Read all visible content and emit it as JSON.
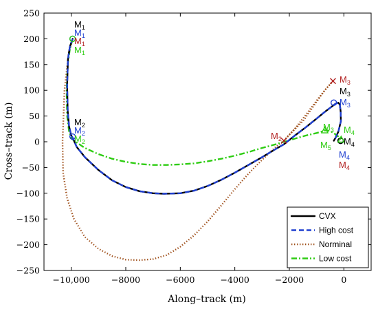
{
  "chart_data": {
    "type": "line",
    "xlabel": "Along–track (m)",
    "ylabel": "Cross–track (m)",
    "xlim": [
      -11000,
      1000
    ],
    "ylim": [
      -250,
      250
    ],
    "xticks": [
      -10000,
      -8000,
      -6000,
      -4000,
      -2000,
      0
    ],
    "xtick_labels": [
      "−10,000",
      "−8000",
      "−6000",
      "−4000",
      "−2000",
      "0"
    ],
    "yticks": [
      250,
      200,
      150,
      100,
      50,
      0,
      -50,
      -100,
      -150,
      -200,
      -250
    ],
    "ytick_labels": [
      "250",
      "200",
      "150",
      "100",
      "50",
      "0",
      "−50",
      "−100",
      "−150",
      "−200",
      "−250"
    ],
    "grid": false,
    "legend_position": "bottom-right",
    "series": [
      {
        "name": "CVX",
        "color": "#000000",
        "style": "solid",
        "x": [
          -9950,
          -10050,
          -10120,
          -10150,
          -10130,
          -10080,
          -10000,
          -9950,
          -9800,
          -9500,
          -9000,
          -8500,
          -8000,
          -7500,
          -7000,
          -6600,
          -6000,
          -5500,
          -5000,
          -4500,
          -4000,
          -3500,
          -3000,
          -2500,
          -2200,
          -1800,
          -1400,
          -1000,
          -700,
          -450,
          -300,
          -200,
          -150,
          -120,
          -110,
          -200,
          -300,
          -370
        ],
        "y": [
          200,
          185,
          160,
          110,
          60,
          30,
          12,
          8,
          -10,
          -30,
          -55,
          -75,
          -88,
          -96,
          -100,
          -101,
          -100,
          -95,
          -86,
          -74,
          -60,
          -45,
          -30,
          -14,
          -5,
          12,
          28,
          45,
          58,
          68,
          74,
          76,
          72,
          60,
          40,
          20,
          8,
          2
        ]
      },
      {
        "name": "High cost",
        "color": "#1f3fd0",
        "style": "dashed",
        "x": [
          -9950,
          -10050,
          -10120,
          -10150,
          -10130,
          -10080,
          -10000,
          -9950,
          -9800,
          -9500,
          -9000,
          -8500,
          -8000,
          -7500,
          -7000,
          -6600,
          -6000,
          -5500,
          -5000,
          -4500,
          -4000,
          -3500,
          -3000,
          -2500,
          -2200,
          -1800,
          -1400,
          -1000,
          -700,
          -450,
          -300,
          -200,
          -150,
          -120,
          -110,
          -200,
          -300,
          -370
        ],
        "y": [
          200,
          185,
          160,
          110,
          60,
          30,
          12,
          8,
          -10,
          -30,
          -55,
          -75,
          -88,
          -96,
          -100,
          -101,
          -100,
          -95,
          -86,
          -74,
          -60,
          -45,
          -30,
          -14,
          -5,
          12,
          28,
          45,
          58,
          68,
          74,
          76,
          72,
          60,
          40,
          20,
          8,
          2
        ]
      },
      {
        "name": "Norminal",
        "color": "#a0521e",
        "style": "dotted",
        "x": [
          -9950,
          -10100,
          -10250,
          -10320,
          -10300,
          -10150,
          -9900,
          -9500,
          -9000,
          -8500,
          -8000,
          -7500,
          -7000,
          -6500,
          -6000,
          -5500,
          -5000,
          -4500,
          -4000,
          -3500,
          -3000,
          -2500,
          -2200,
          -1800,
          -1400,
          -1000,
          -700,
          -500,
          -400,
          -700,
          -1100,
          -1500,
          -2000,
          -2200
        ],
        "y": [
          200,
          170,
          100,
          0,
          -60,
          -110,
          -150,
          -185,
          -208,
          -222,
          -229,
          -230,
          -228,
          -220,
          -204,
          -182,
          -155,
          -124,
          -92,
          -62,
          -35,
          -10,
          2,
          25,
          52,
          80,
          100,
          112,
          118,
          100,
          70,
          40,
          14,
          2
        ]
      },
      {
        "name": "Low cost",
        "color": "#2ecc12",
        "style": "dashdot",
        "x": [
          -9950,
          -10050,
          -10130,
          -10170,
          -10150,
          -10080,
          -10000,
          -9900,
          -9500,
          -9000,
          -8500,
          -8000,
          -7500,
          -7000,
          -6500,
          -6000,
          -5500,
          -5000,
          -4500,
          -4000,
          -3500,
          -3000,
          -2500,
          -2200,
          -1800,
          -1400,
          -1000,
          -800,
          -700,
          -600,
          -400,
          -200,
          -100
        ],
        "y": [
          200,
          180,
          150,
          100,
          50,
          20,
          8,
          2,
          -12,
          -24,
          -33,
          -39,
          -43,
          -45,
          -45,
          -44,
          -42,
          -38,
          -33,
          -27,
          -20,
          -12,
          -5,
          0,
          6,
          12,
          17,
          20,
          22,
          22,
          18,
          10,
          4
        ]
      }
    ],
    "annotations": [
      {
        "label": "M",
        "sub": "1",
        "color": "#000000"
      },
      {
        "label": "M",
        "sub": "1",
        "color": "#1f3fd0"
      },
      {
        "label": "M",
        "sub": "1",
        "color": "#b22222"
      },
      {
        "label": "M",
        "sub": "1",
        "color": "#2ecc12"
      },
      {
        "label": "M",
        "sub": "2",
        "color": "#000000"
      },
      {
        "label": "M",
        "sub": "2",
        "color": "#1f3fd0"
      },
      {
        "label": "M",
        "sub": "2",
        "color": "#2ecc12"
      },
      {
        "label": "M",
        "sub": "2",
        "color": "#b22222"
      },
      {
        "label": "M",
        "sub": "3",
        "color": "#b22222"
      },
      {
        "label": "M",
        "sub": "3",
        "color": "#000000"
      },
      {
        "label": "M",
        "sub": "3",
        "color": "#1f3fd0"
      },
      {
        "label": "M",
        "sub": "3",
        "color": "#2ecc12"
      },
      {
        "label": "M",
        "sub": "4",
        "color": "#2ecc12"
      },
      {
        "label": "M",
        "sub": "4",
        "color": "#000000"
      },
      {
        "label": "M",
        "sub": "4",
        "color": "#1f3fd0"
      },
      {
        "label": "M",
        "sub": "4",
        "color": "#b22222"
      },
      {
        "label": "M",
        "sub": "5",
        "color": "#2ecc12"
      }
    ],
    "legend": [
      "CVX",
      "High cost",
      "Norminal",
      "Low cost"
    ]
  }
}
